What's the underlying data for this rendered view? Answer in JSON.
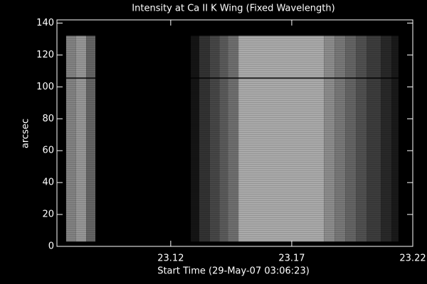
{
  "chart_data": {
    "type": "heatmap",
    "title": "Intensity at Ca II K Wing (Fixed Wavelength)",
    "xlabel": "Start Time (29-May-07 03:06:23)",
    "ylabel": "arcsec",
    "xlim": [
      23.073,
      23.22
    ],
    "ylim": [
      0,
      142
    ],
    "xticks": [
      23.12,
      23.17,
      23.22
    ],
    "yticks": [
      0,
      20,
      40,
      60,
      80,
      100,
      120,
      140
    ],
    "x_edges": [
      23.0768,
      23.0809,
      23.0851,
      23.0889,
      23.1283,
      23.1318,
      23.1362,
      23.1401,
      23.1436,
      23.148,
      23.1833,
      23.1877,
      23.1921,
      23.1965,
      23.2009,
      23.2068,
      23.2112,
      23.2141
    ],
    "y_extent": [
      3,
      132
    ],
    "values": [
      130,
      150,
      100,
      0,
      20,
      50,
      70,
      90,
      110,
      170,
      140,
      120,
      100,
      80,
      60,
      40,
      25
    ]
  }
}
